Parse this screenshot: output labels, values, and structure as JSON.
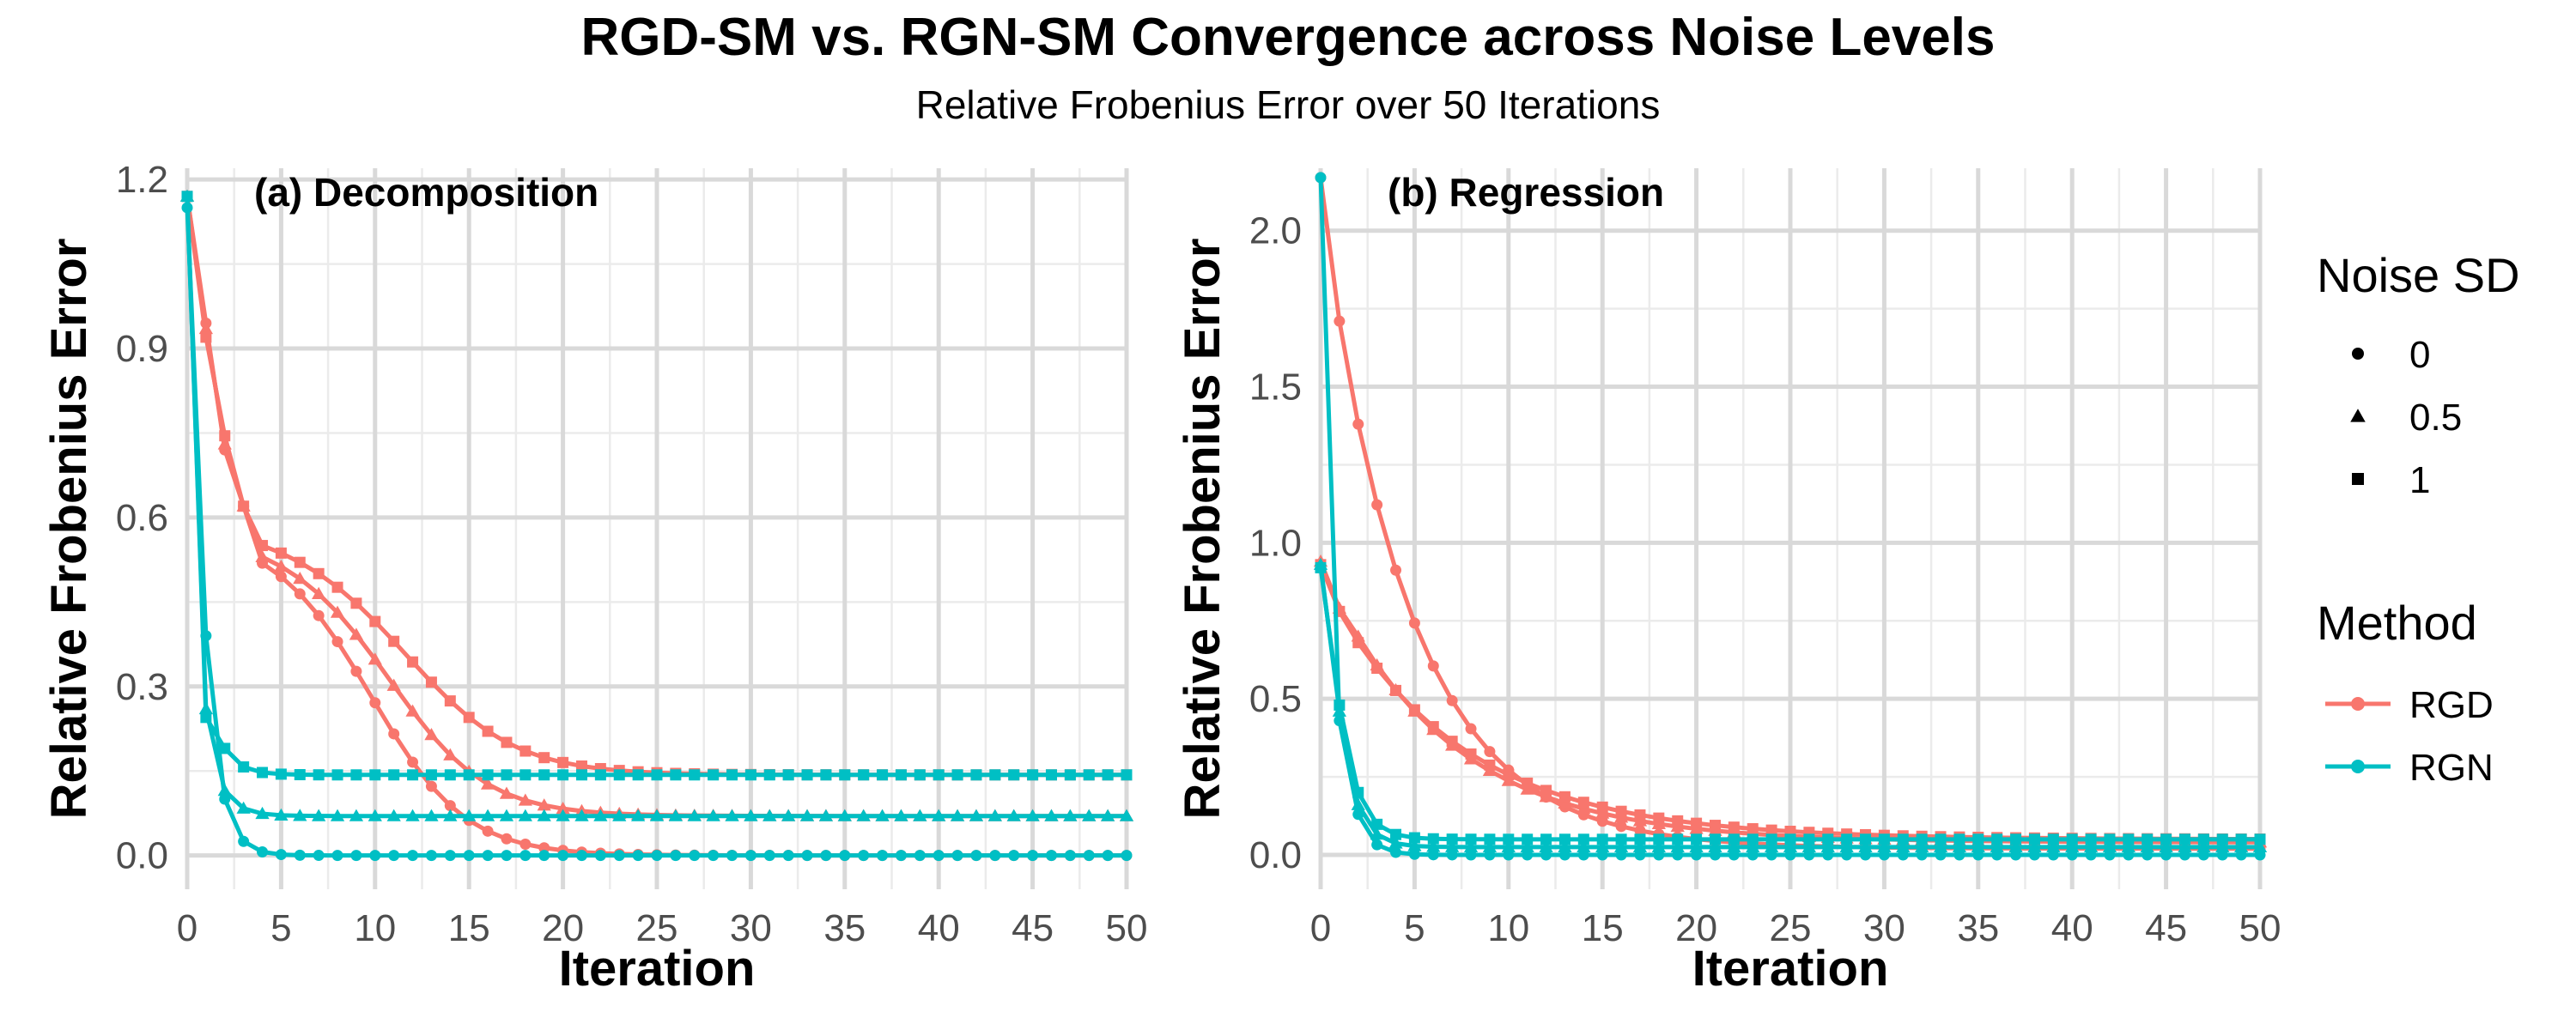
{
  "title": "RGD-SM vs. RGN-SM Convergence across Noise Levels",
  "subtitle": "Relative Frobenius Error over 50 Iterations",
  "colors": {
    "RGD": "#F8766D",
    "RGN": "#00BFC4"
  },
  "legend": {
    "noise_title": "Noise SD",
    "noise_items": [
      {
        "label": "0",
        "shape": "circle"
      },
      {
        "label": "0.5",
        "shape": "triangle"
      },
      {
        "label": "1",
        "shape": "square"
      }
    ],
    "method_title": "Method",
    "method_items": [
      {
        "label": "RGD",
        "color": "#F8766D"
      },
      {
        "label": "RGN",
        "color": "#00BFC4"
      }
    ]
  },
  "chart_data": [
    {
      "type": "line",
      "label": "(a) Decomposition",
      "xlabel": "Iteration",
      "ylabel": "Relative Frobenius Error",
      "xlim": [
        0,
        50
      ],
      "ylim": [
        -0.06,
        1.22
      ],
      "xticks": [
        0,
        5,
        10,
        15,
        20,
        25,
        30,
        35,
        40,
        45,
        50
      ],
      "yticks": [
        0.0,
        0.3,
        0.6,
        0.9,
        1.2
      ],
      "ytick_labels": [
        "0.0",
        "0.3",
        "0.6",
        "0.9",
        "1.2"
      ],
      "series": [
        {
          "method": "RGD",
          "noise": "0",
          "start": 1.17,
          "c1": 0.945,
          "c2": 0.72,
          "plateau": 0.57,
          "mid": 10.0,
          "scale": 2.5,
          "floor": 0.0
        },
        {
          "method": "RGD",
          "noise": "0.5",
          "start": 1.17,
          "c1": 0.935,
          "c2": 0.73,
          "plateau": 0.565,
          "mid": 11.0,
          "scale": 2.6,
          "floor": 0.07
        },
        {
          "method": "RGD",
          "noise": "1",
          "start": 1.17,
          "c1": 0.92,
          "c2": 0.745,
          "plateau": 0.58,
          "mid": 12.0,
          "scale": 2.9,
          "floor": 0.143
        },
        {
          "method": "RGN",
          "noise": "0",
          "start": 1.15,
          "c1": 0.39,
          "c2": 0.1,
          "r": 0.25,
          "floor": 0.0
        },
        {
          "method": "RGN",
          "noise": "0.5",
          "start": 1.17,
          "c1": 0.26,
          "c2": 0.115,
          "r": 0.3,
          "floor": 0.07
        },
        {
          "method": "RGN",
          "noise": "1",
          "start": 1.17,
          "c1": 0.245,
          "c2": 0.19,
          "r": 0.3,
          "floor": 0.143
        }
      ]
    },
    {
      "type": "line",
      "label": "(b) Regression",
      "xlabel": "Iteration",
      "ylabel": "Relative Frobenius Error",
      "xlim": [
        0,
        50
      ],
      "ylim": [
        -0.11,
        2.2
      ],
      "xticks": [
        0,
        5,
        10,
        15,
        20,
        25,
        30,
        35,
        40,
        45,
        50
      ],
      "yticks": [
        0.0,
        0.5,
        1.0,
        1.5,
        2.0
      ],
      "ytick_labels": [
        "0.0",
        "0.5",
        "1.0",
        "1.5",
        "2.0"
      ],
      "series": [
        {
          "method": "RGD",
          "noise": "0",
          "start": 2.17,
          "c1": 1.71,
          "c2": 1.38,
          "r": 0.81,
          "floor": 0.02
        },
        {
          "method": "RGD",
          "noise": "0.5",
          "start": 0.94,
          "c1": 0.79,
          "c2": 0.7,
          "r": 0.86,
          "floor": 0.04
        },
        {
          "method": "RGD",
          "noise": "1",
          "start": 0.93,
          "c1": 0.78,
          "c2": 0.68,
          "r": 0.87,
          "floor": 0.05
        },
        {
          "method": "RGN",
          "noise": "0",
          "start": 2.17,
          "c1": 0.43,
          "c2": 0.13,
          "r": 0.25,
          "floor": 0.0
        },
        {
          "method": "RGN",
          "noise": "0.5",
          "start": 0.93,
          "c1": 0.46,
          "c2": 0.16,
          "r": 0.3,
          "floor": 0.025
        },
        {
          "method": "RGN",
          "noise": "1",
          "start": 0.92,
          "c1": 0.48,
          "c2": 0.2,
          "r": 0.32,
          "floor": 0.05
        }
      ]
    }
  ]
}
